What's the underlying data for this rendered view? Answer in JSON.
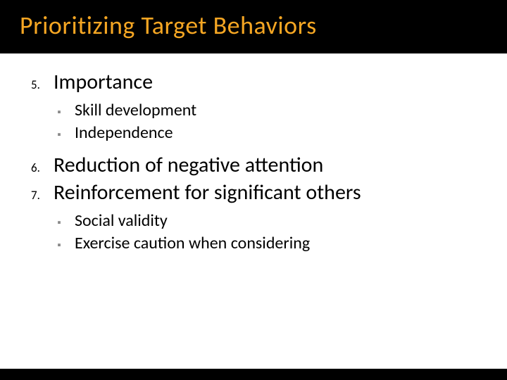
{
  "slide": {
    "title": "Prioritizing Target Behaviors",
    "title_color": "#f5a623",
    "title_fontsize": 36,
    "background_top": "#000000",
    "background_body": "#ffffff",
    "items": [
      {
        "marker": "5.",
        "text": "Importance",
        "sub": [
          {
            "bullet": "▪",
            "text": "Skill development"
          },
          {
            "bullet": "▪",
            "text": "Independence"
          }
        ]
      },
      {
        "marker": "6.",
        "text": "Reduction of negative attention",
        "sub": []
      },
      {
        "marker": "7.",
        "text": "Reinforcement for significant others",
        "sub": [
          {
            "bullet": "▪",
            "text": "Social validity"
          },
          {
            "bullet": "▪",
            "text": "Exercise caution when considering"
          }
        ]
      }
    ],
    "numbered_fontsize": 30,
    "numbered_marker_fontsize": 17,
    "sub_fontsize": 24,
    "sub_bullet_color": "#8a8a8a"
  }
}
